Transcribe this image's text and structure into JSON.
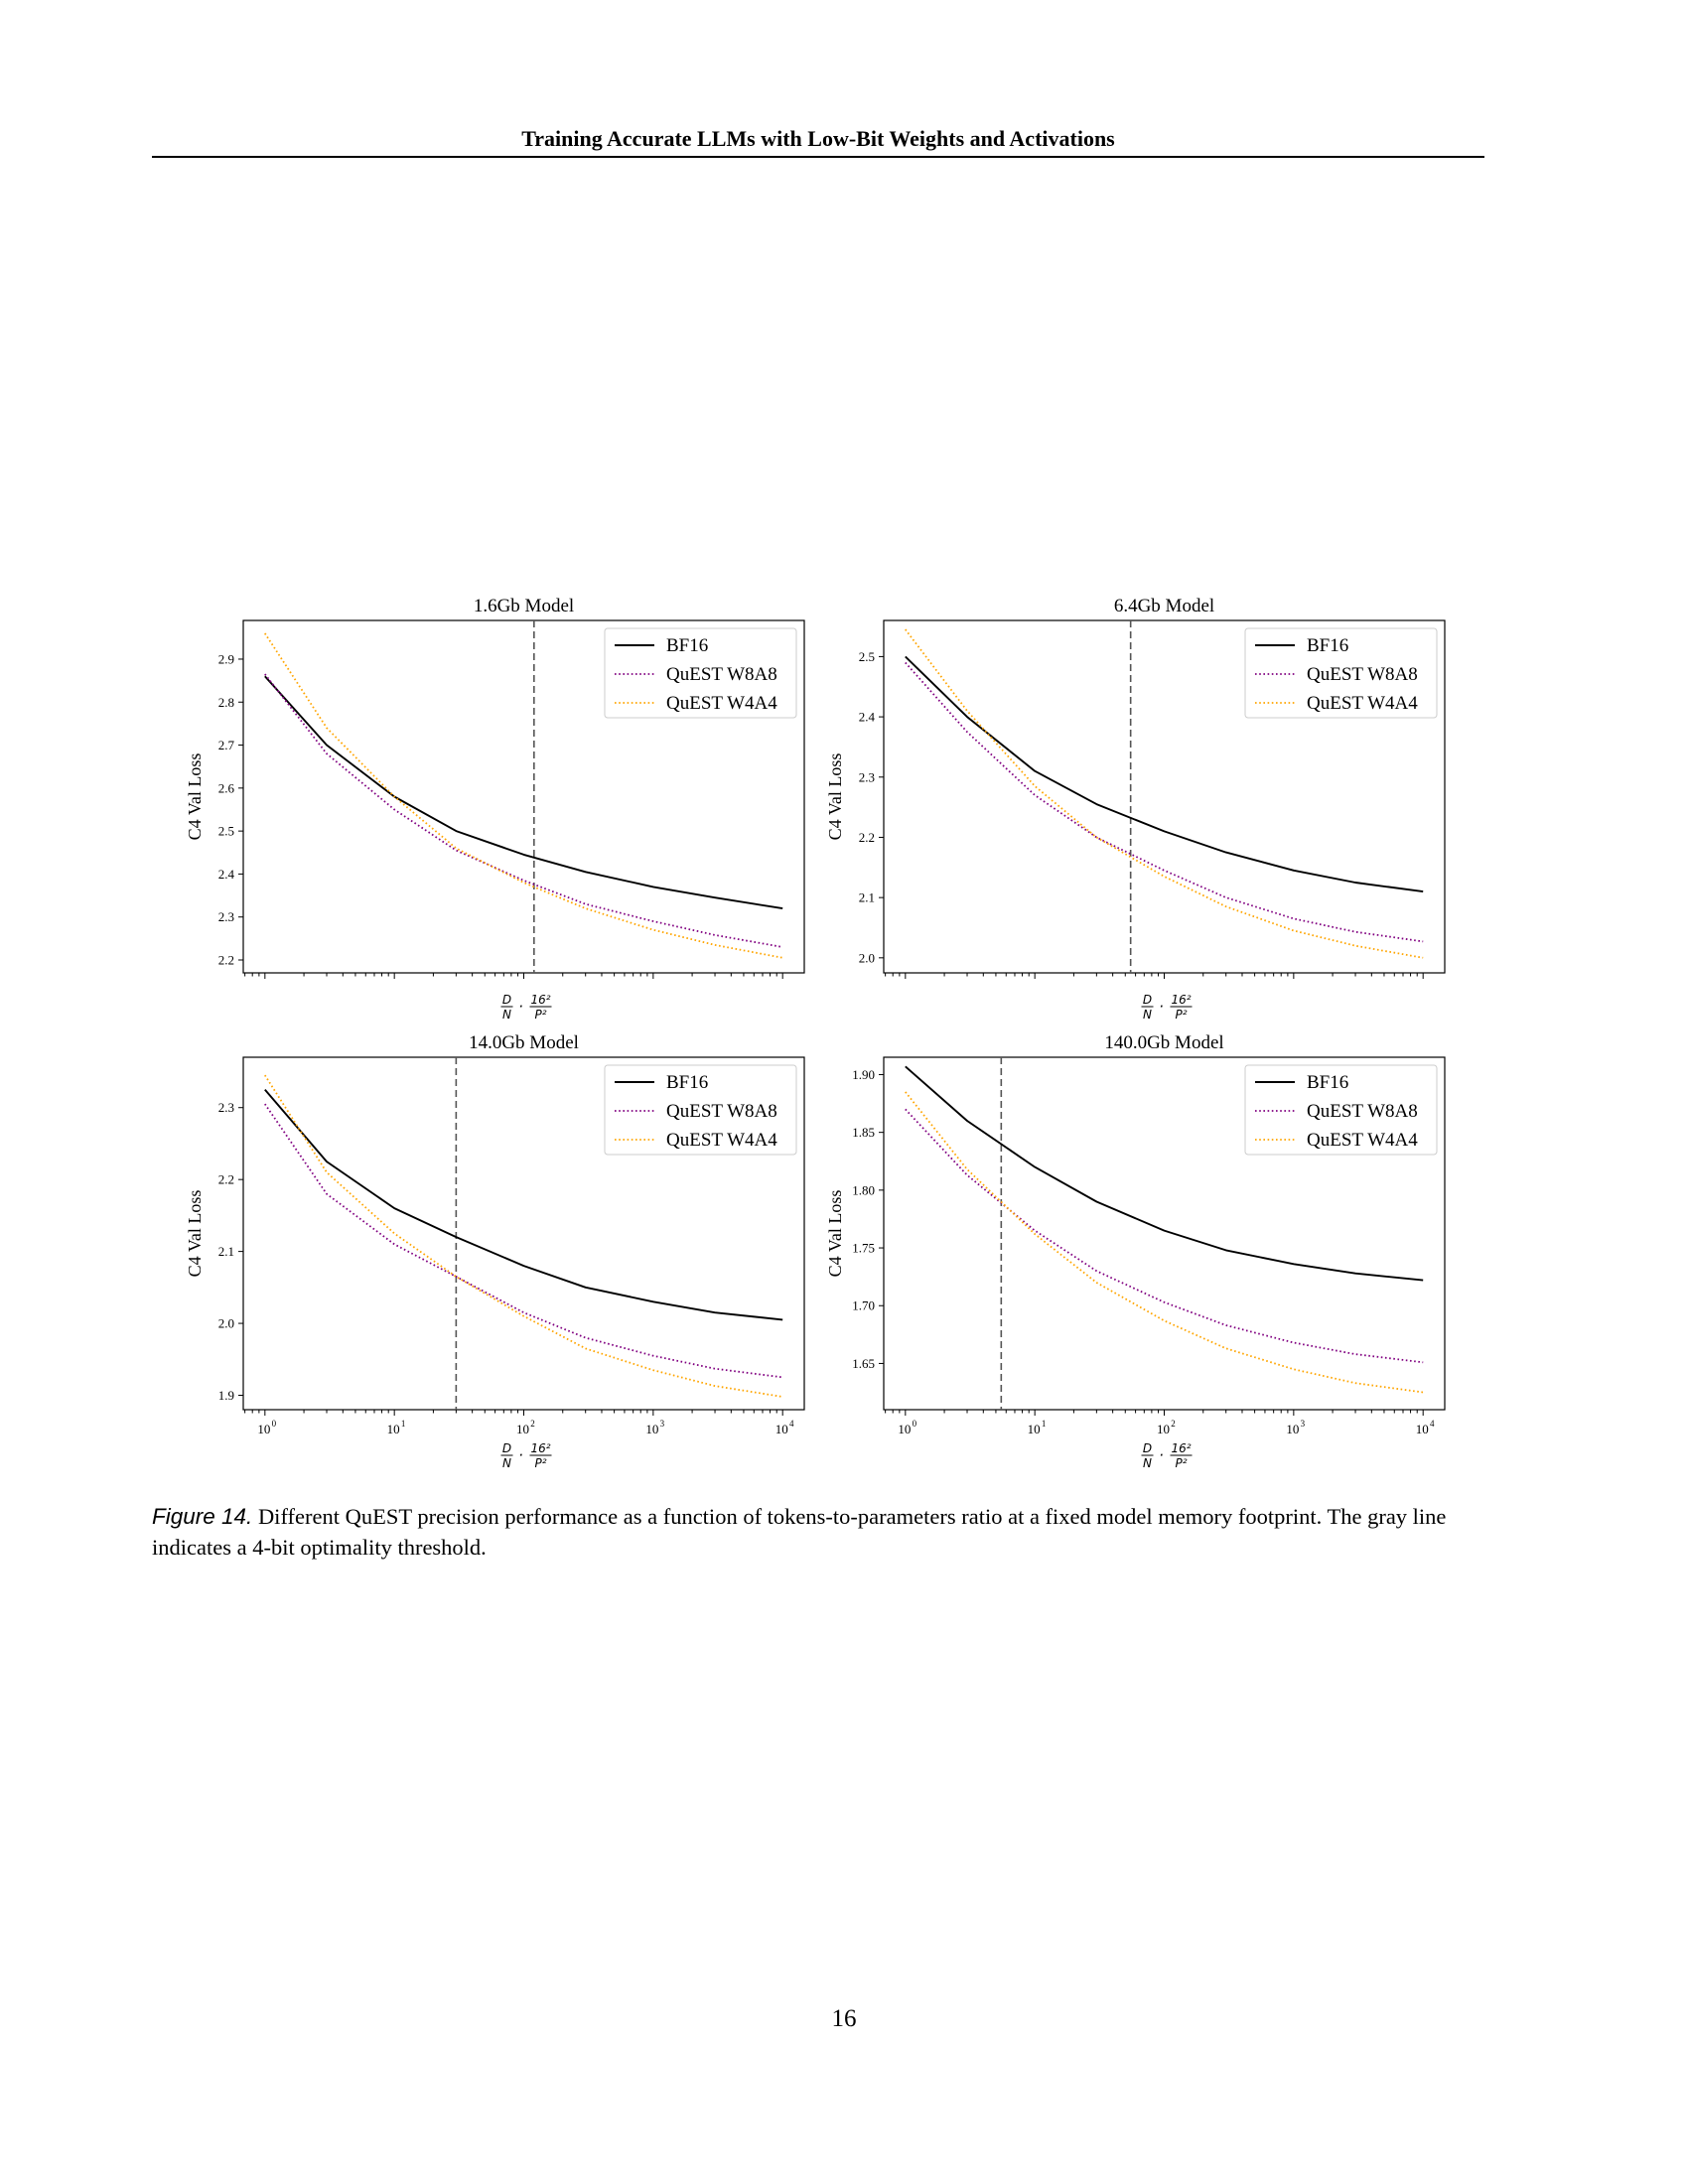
{
  "header": {
    "title": "Training Accurate LLMs with Low-Bit Weights and Activations"
  },
  "figure": {
    "caption_label": "Figure 14.",
    "caption_text": " Different QuEST precision performance as a function of tokens-to-parameters ratio at a fixed model memory footprint. The gray line indicates a 4-bit optimality threshold."
  },
  "page_number": "16",
  "colors": {
    "bf16": "#000000",
    "w8a8": "#800080",
    "w4a4": "#ffa500",
    "threshold": "#555555"
  },
  "chart_data": [
    {
      "type": "line",
      "title": "1.6Gb Model",
      "xlabel": "D/N · 16²/P²",
      "ylabel": "C4 Val Loss",
      "xscale": "log",
      "xlim": [
        0.68,
        14700
      ],
      "ylim": [
        2.17,
        2.99
      ],
      "yticks": [
        "2.2",
        "2.3",
        "2.4",
        "2.5",
        "2.6",
        "2.7",
        "2.8",
        "2.9"
      ],
      "show_xtick_labels": false,
      "legend": "top-right",
      "threshold_x": 120,
      "series": [
        {
          "name": "BF16",
          "style": "solid",
          "x": [
            1,
            3,
            10,
            30,
            100,
            300,
            1000,
            3000,
            10000
          ],
          "y": [
            2.86,
            2.7,
            2.58,
            2.5,
            2.445,
            2.405,
            2.37,
            2.345,
            2.32
          ]
        },
        {
          "name": "QuEST W8A8",
          "style": "dotted",
          "x": [
            1,
            3,
            10,
            30,
            100,
            300,
            1000,
            3000,
            10000
          ],
          "y": [
            2.865,
            2.68,
            2.55,
            2.455,
            2.385,
            2.33,
            2.29,
            2.258,
            2.23
          ]
        },
        {
          "name": "QuEST W4A4",
          "style": "dotted",
          "x": [
            1,
            3,
            10,
            30,
            100,
            300,
            1000,
            3000,
            10000
          ],
          "y": [
            2.96,
            2.74,
            2.58,
            2.46,
            2.38,
            2.32,
            2.27,
            2.235,
            2.205
          ]
        }
      ]
    },
    {
      "type": "line",
      "title": "6.4Gb Model",
      "xlabel": "D/N · 16²/P²",
      "ylabel": "C4 Val Loss",
      "xscale": "log",
      "xlim": [
        0.68,
        14700
      ],
      "ylim": [
        1.975,
        2.56
      ],
      "yticks": [
        "2.0",
        "2.1",
        "2.2",
        "2.3",
        "2.4",
        "2.5"
      ],
      "show_xtick_labels": false,
      "legend": "top-right",
      "threshold_x": 55,
      "series": [
        {
          "name": "BF16",
          "style": "solid",
          "x": [
            1,
            3,
            10,
            30,
            100,
            300,
            1000,
            3000,
            10000
          ],
          "y": [
            2.5,
            2.4,
            2.31,
            2.255,
            2.21,
            2.175,
            2.145,
            2.125,
            2.11
          ]
        },
        {
          "name": "QuEST W8A8",
          "style": "dotted",
          "x": [
            1,
            3,
            10,
            30,
            100,
            300,
            1000,
            3000,
            10000
          ],
          "y": [
            2.49,
            2.375,
            2.27,
            2.2,
            2.145,
            2.1,
            2.065,
            2.043,
            2.027
          ]
        },
        {
          "name": "QuEST W4A4",
          "style": "dotted",
          "x": [
            1,
            3,
            10,
            30,
            100,
            300,
            1000,
            3000,
            10000
          ],
          "y": [
            2.545,
            2.41,
            2.285,
            2.2,
            2.135,
            2.085,
            2.045,
            2.02,
            2.0
          ]
        }
      ]
    },
    {
      "type": "line",
      "title": "14.0Gb Model",
      "xlabel": "D/N · 16²/P²",
      "ylabel": "C4 Val Loss",
      "xscale": "log",
      "xlim": [
        0.68,
        14700
      ],
      "ylim": [
        1.88,
        2.37
      ],
      "yticks": [
        "1.9",
        "2.0",
        "2.1",
        "2.2",
        "2.3"
      ],
      "xticks": [
        1,
        10,
        100,
        1000,
        10000
      ],
      "show_xtick_labels": true,
      "legend": "top-right",
      "threshold_x": 30,
      "series": [
        {
          "name": "BF16",
          "style": "solid",
          "x": [
            1,
            3,
            10,
            30,
            100,
            300,
            1000,
            3000,
            10000
          ],
          "y": [
            2.325,
            2.225,
            2.16,
            2.12,
            2.08,
            2.05,
            2.03,
            2.015,
            2.005
          ]
        },
        {
          "name": "QuEST W8A8",
          "style": "dotted",
          "x": [
            1,
            3,
            10,
            30,
            100,
            300,
            1000,
            3000,
            10000
          ],
          "y": [
            2.305,
            2.18,
            2.11,
            2.065,
            2.015,
            1.98,
            1.955,
            1.937,
            1.925
          ]
        },
        {
          "name": "QuEST W4A4",
          "style": "dotted",
          "x": [
            1,
            3,
            10,
            30,
            100,
            300,
            1000,
            3000,
            10000
          ],
          "y": [
            2.345,
            2.21,
            2.125,
            2.065,
            2.01,
            1.965,
            1.935,
            1.913,
            1.898
          ]
        }
      ]
    },
    {
      "type": "line",
      "title": "140.0Gb Model",
      "xlabel": "D/N · 16²/P²",
      "ylabel": "C4 Val Loss",
      "xscale": "log",
      "xlim": [
        0.68,
        14700
      ],
      "ylim": [
        1.61,
        1.915
      ],
      "yticks": [
        "1.65",
        "1.70",
        "1.75",
        "1.80",
        "1.85",
        "1.90"
      ],
      "xticks": [
        1,
        10,
        100,
        1000,
        10000
      ],
      "show_xtick_labels": true,
      "legend": "top-right",
      "threshold_x": 5.5,
      "series": [
        {
          "name": "BF16",
          "style": "solid",
          "x": [
            1,
            3,
            10,
            30,
            100,
            300,
            1000,
            3000,
            10000
          ],
          "y": [
            1.907,
            1.86,
            1.82,
            1.79,
            1.765,
            1.748,
            1.736,
            1.728,
            1.722
          ]
        },
        {
          "name": "QuEST W8A8",
          "style": "dotted",
          "x": [
            1,
            3,
            10,
            30,
            100,
            300,
            1000,
            3000,
            10000
          ],
          "y": [
            1.87,
            1.813,
            1.765,
            1.73,
            1.703,
            1.683,
            1.668,
            1.658,
            1.651
          ]
        },
        {
          "name": "QuEST W4A4",
          "style": "dotted",
          "x": [
            1,
            3,
            10,
            30,
            100,
            300,
            1000,
            3000,
            10000
          ],
          "y": [
            1.885,
            1.818,
            1.762,
            1.72,
            1.687,
            1.663,
            1.645,
            1.633,
            1.625
          ]
        }
      ]
    }
  ]
}
